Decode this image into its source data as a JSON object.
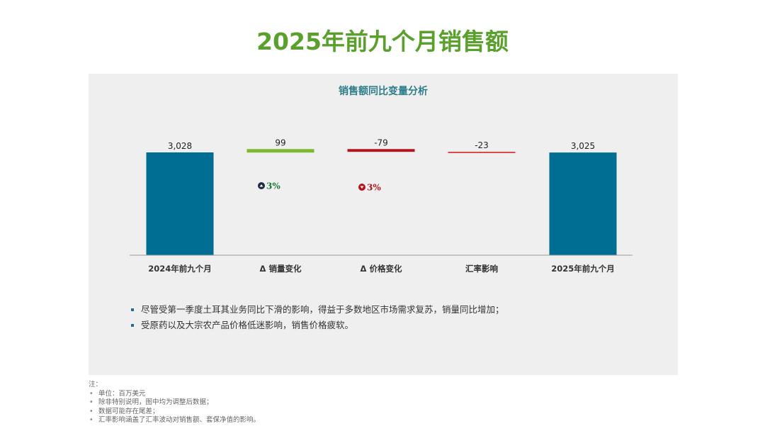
{
  "header": {
    "title": "2025年前九个月销售额"
  },
  "chart_data": {
    "type": "bar",
    "subtype": "waterfall",
    "title": "销售额同比变量分析",
    "categories": [
      "2024年前九个月",
      "Δ 销量变化",
      "Δ 价格变化",
      "汇率影响",
      "2025年前九个月"
    ],
    "values": [
      3028,
      99,
      -79,
      -23,
      3025
    ],
    "value_labels": [
      "3,028",
      "99",
      "-79",
      "-23",
      "3,025"
    ],
    "kinds": [
      "total",
      "delta",
      "delta",
      "delta",
      "total"
    ],
    "colors": [
      "#006d92",
      "#7dba2f",
      "#b0161e",
      "#d44a4a",
      "#006d92"
    ],
    "pct_badges": [
      {
        "index": 1,
        "text": "3%",
        "direction": "up",
        "color": "#1a7a3c"
      },
      {
        "index": 2,
        "text": "3%",
        "direction": "down",
        "color": "#b0161e"
      }
    ],
    "xlabel": "",
    "ylabel": "",
    "grid": false,
    "legend": "none"
  },
  "bullets": [
    "尽管受第一季度土耳其业务同比下滑的影响，得益于多数地区市场需求复苏，销量同比增加；",
    "受原药以及大宗农产品价格低迷影响，销售价格疲软。"
  ],
  "notes": {
    "label": "注：",
    "items": [
      "单位：百万美元",
      "除非特别说明，图中均为调整后数据；",
      "数据可能存在尾差；",
      "汇率影响涵盖了汇率波动对销售额、套保净值的影响。"
    ]
  }
}
